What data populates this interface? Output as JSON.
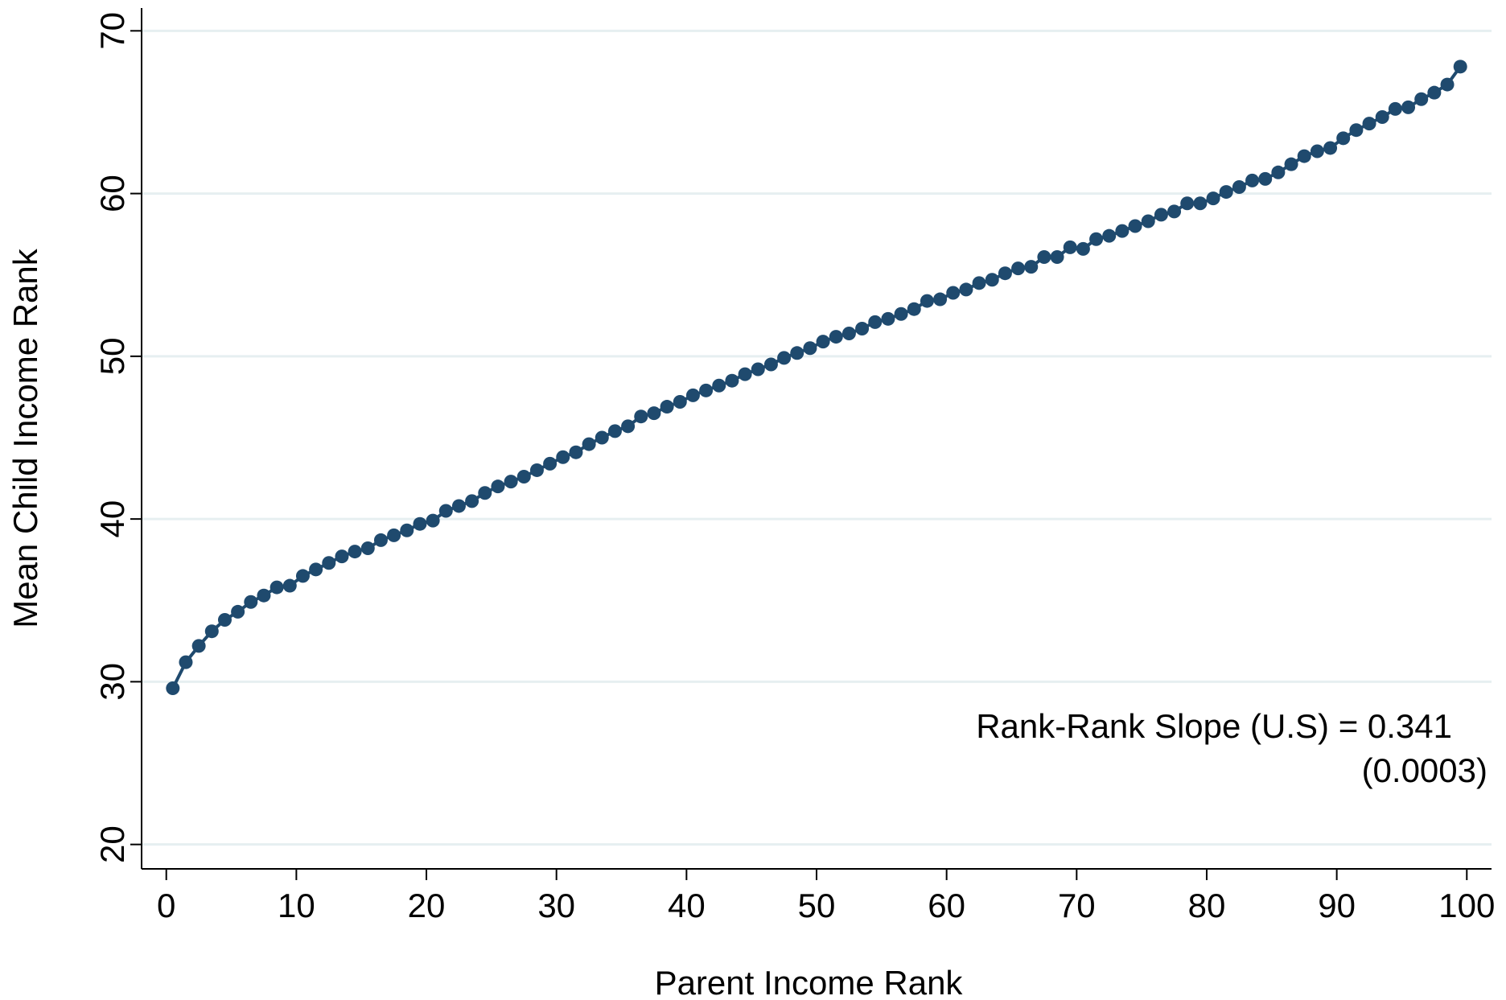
{
  "chart_data": {
    "type": "line",
    "x_label": "Parent Income Rank",
    "y_label": "Mean Child Income Rank",
    "annotation": [
      "Rank-Rank Slope (U.S) = 0.341",
      "(0.0003)"
    ],
    "x": [
      0.5,
      1.5,
      2.5,
      3.5,
      4.5,
      5.5,
      6.5,
      7.5,
      8.5,
      9.5,
      10.5,
      11.5,
      12.5,
      13.5,
      14.5,
      15.5,
      16.5,
      17.5,
      18.5,
      19.5,
      20.5,
      21.5,
      22.5,
      23.5,
      24.5,
      25.5,
      26.5,
      27.5,
      28.5,
      29.5,
      30.5,
      31.5,
      32.5,
      33.5,
      34.5,
      35.5,
      36.5,
      37.5,
      38.5,
      39.5,
      40.5,
      41.5,
      42.5,
      43.5,
      44.5,
      45.5,
      46.5,
      47.5,
      48.5,
      49.5,
      50.5,
      51.5,
      52.5,
      53.5,
      54.5,
      55.5,
      56.5,
      57.5,
      58.5,
      59.5,
      60.5,
      61.5,
      62.5,
      63.5,
      64.5,
      65.5,
      66.5,
      67.5,
      68.5,
      69.5,
      70.5,
      71.5,
      72.5,
      73.5,
      74.5,
      75.5,
      76.5,
      77.5,
      78.5,
      79.5,
      80.5,
      81.5,
      82.5,
      83.5,
      84.5,
      85.5,
      86.5,
      87.5,
      88.5,
      89.5,
      90.5,
      91.5,
      92.5,
      93.5,
      94.5,
      95.5,
      96.5,
      97.5,
      98.5,
      99.5
    ],
    "series": [
      {
        "color": "#1f4a6e",
        "values": [
          29.6,
          31.2,
          32.2,
          33.1,
          33.8,
          34.3,
          34.9,
          35.3,
          35.8,
          35.9,
          36.5,
          36.9,
          37.3,
          37.7,
          38.0,
          38.2,
          38.7,
          39.0,
          39.3,
          39.7,
          39.9,
          40.5,
          40.8,
          41.1,
          41.6,
          42.0,
          42.3,
          42.6,
          43.0,
          43.4,
          43.8,
          44.1,
          44.6,
          45.0,
          45.4,
          45.7,
          46.3,
          46.5,
          46.9,
          47.2,
          47.6,
          47.9,
          48.2,
          48.5,
          48.9,
          49.2,
          49.5,
          49.9,
          50.2,
          50.5,
          50.9,
          51.2,
          51.4,
          51.7,
          52.1,
          52.3,
          52.6,
          52.9,
          53.4,
          53.5,
          53.9,
          54.1,
          54.5,
          54.7,
          55.1,
          55.4,
          55.5,
          56.1,
          56.1,
          56.7,
          56.6,
          57.2,
          57.4,
          57.7,
          58.0,
          58.3,
          58.7,
          58.9,
          59.4,
          59.4,
          59.7,
          60.1,
          60.4,
          60.8,
          60.9,
          61.3,
          61.8,
          62.3,
          62.6,
          62.8,
          63.4,
          63.9,
          64.3,
          64.7,
          65.2,
          65.3,
          65.8,
          66.2,
          66.7,
          67.8
        ]
      }
    ],
    "xlim": [
      -1.9,
      101.9
    ],
    "xticks": [
      0,
      10,
      20,
      30,
      40,
      50,
      60,
      70,
      80,
      90,
      100
    ],
    "ylim": [
      18.5,
      71.4
    ],
    "yticks": [
      20,
      30,
      40,
      50,
      60,
      70
    ],
    "grid": true,
    "grid_color": "#e6eff1"
  }
}
